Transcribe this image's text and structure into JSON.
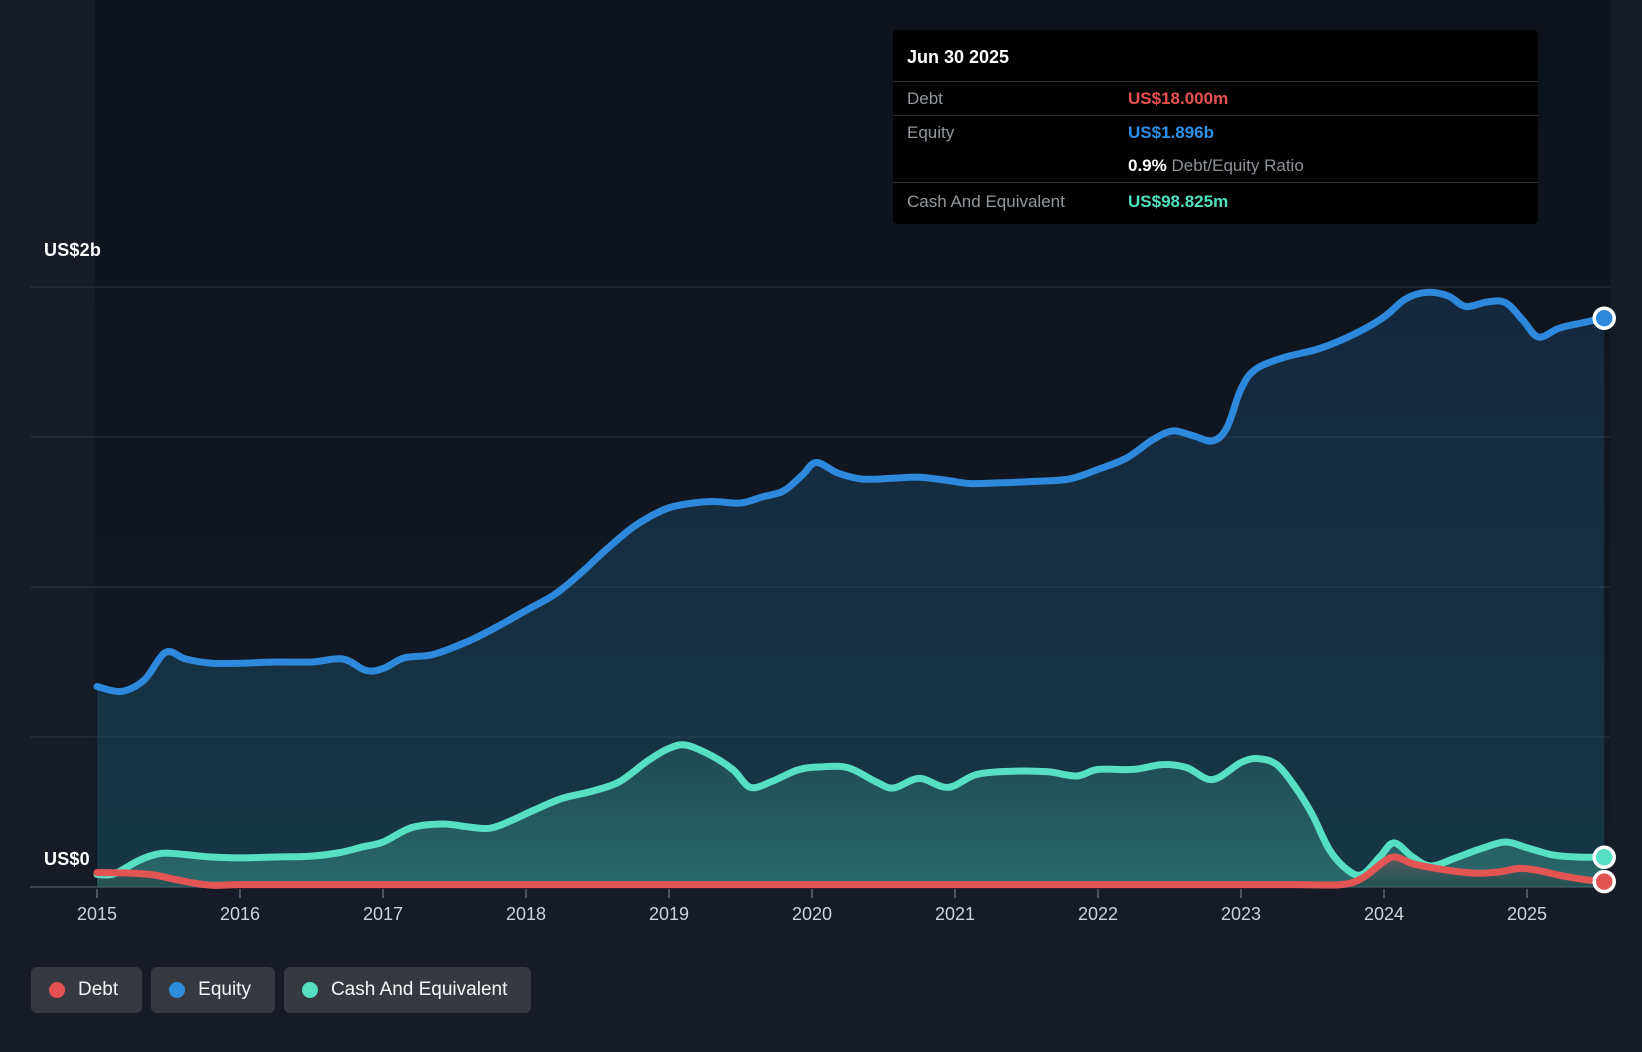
{
  "tooltip": {
    "date": "Jun 30 2025",
    "rows": [
      {
        "label": "Debt",
        "value": "US$18.000m",
        "color": "#e8514f"
      },
      {
        "label": "Equity",
        "value": "US$1.896b",
        "color": "#2f90e9"
      },
      {
        "label": "Cash And Equivalent",
        "value": "US$98.825m",
        "color": "#4fe0c2"
      }
    ],
    "ratio_value": "0.9%",
    "ratio_label": "Debt/Equity Ratio"
  },
  "y_axis": {
    "top_label": "US$2b",
    "bottom_label": "US$0"
  },
  "x_axis": {
    "years": [
      "2015",
      "2016",
      "2017",
      "2018",
      "2019",
      "2020",
      "2021",
      "2022",
      "2023",
      "2024",
      "2025"
    ]
  },
  "legend": {
    "items": [
      {
        "label": "Debt",
        "color": "#e2504f"
      },
      {
        "label": "Equity",
        "color": "#2e8ddb"
      },
      {
        "label": "Cash And Equivalent",
        "color": "#55dfc3"
      }
    ]
  },
  "colors": {
    "background": "#161b25",
    "plot_background": "#10151e",
    "gridline": "#272e3a",
    "axis_line": "#39414f",
    "tick": "#4b5463",
    "tick_label": "#ced3da",
    "equity_line": "#2e89dc",
    "cash_line": "#57dfc4",
    "debt_line": "#e25553",
    "marker_ring": "#ffffff"
  },
  "chart_data": {
    "type": "area",
    "x_unit": "year",
    "y_unit": "US$ billions",
    "xlim": [
      2015.0,
      2025.54
    ],
    "ylim": [
      0,
      2
    ],
    "gridline_values": [
      2,
      1.5,
      1,
      0.5
    ],
    "grid": true,
    "legend_position": "bottom-left",
    "series": [
      {
        "name": "Equity",
        "color": "#2e89dc",
        "points": [
          [
            2015.0,
            0.668
          ],
          [
            2015.17,
            0.652
          ],
          [
            2015.33,
            0.69
          ],
          [
            2015.48,
            0.782
          ],
          [
            2015.62,
            0.76
          ],
          [
            2015.8,
            0.746
          ],
          [
            2016.0,
            0.746
          ],
          [
            2016.25,
            0.75
          ],
          [
            2016.5,
            0.75
          ],
          [
            2016.72,
            0.76
          ],
          [
            2016.88,
            0.722
          ],
          [
            2017.0,
            0.728
          ],
          [
            2017.15,
            0.764
          ],
          [
            2017.35,
            0.775
          ],
          [
            2017.6,
            0.82
          ],
          [
            2017.8,
            0.868
          ],
          [
            2018.0,
            0.922
          ],
          [
            2018.2,
            0.975
          ],
          [
            2018.38,
            1.045
          ],
          [
            2018.55,
            1.12
          ],
          [
            2018.75,
            1.2
          ],
          [
            2018.95,
            1.255
          ],
          [
            2019.1,
            1.275
          ],
          [
            2019.3,
            1.285
          ],
          [
            2019.5,
            1.28
          ],
          [
            2019.65,
            1.3
          ],
          [
            2019.8,
            1.32
          ],
          [
            2019.93,
            1.372
          ],
          [
            2020.03,
            1.415
          ],
          [
            2020.18,
            1.38
          ],
          [
            2020.35,
            1.36
          ],
          [
            2020.55,
            1.362
          ],
          [
            2020.75,
            1.366
          ],
          [
            2020.95,
            1.355
          ],
          [
            2021.1,
            1.345
          ],
          [
            2021.3,
            1.347
          ],
          [
            2021.55,
            1.352
          ],
          [
            2021.8,
            1.36
          ],
          [
            2022.0,
            1.392
          ],
          [
            2022.2,
            1.43
          ],
          [
            2022.38,
            1.49
          ],
          [
            2022.52,
            1.52
          ],
          [
            2022.66,
            1.505
          ],
          [
            2022.8,
            1.487
          ],
          [
            2022.9,
            1.53
          ],
          [
            2023.0,
            1.66
          ],
          [
            2023.1,
            1.725
          ],
          [
            2023.3,
            1.765
          ],
          [
            2023.55,
            1.795
          ],
          [
            2023.8,
            1.845
          ],
          [
            2024.0,
            1.9
          ],
          [
            2024.15,
            1.96
          ],
          [
            2024.3,
            1.982
          ],
          [
            2024.45,
            1.97
          ],
          [
            2024.57,
            1.935
          ],
          [
            2024.72,
            1.95
          ],
          [
            2024.85,
            1.948
          ],
          [
            2024.97,
            1.89
          ],
          [
            2025.08,
            1.833
          ],
          [
            2025.22,
            1.862
          ],
          [
            2025.38,
            1.88
          ],
          [
            2025.54,
            1.896
          ]
        ],
        "end_value_label": "US$1.896b"
      },
      {
        "name": "Cash And Equivalent",
        "color": "#57dfc4",
        "points": [
          [
            2015.0,
            0.042
          ],
          [
            2015.12,
            0.044
          ],
          [
            2015.3,
            0.09
          ],
          [
            2015.45,
            0.112
          ],
          [
            2015.62,
            0.108
          ],
          [
            2015.8,
            0.1
          ],
          [
            2016.0,
            0.097
          ],
          [
            2016.25,
            0.1
          ],
          [
            2016.5,
            0.103
          ],
          [
            2016.7,
            0.115
          ],
          [
            2016.85,
            0.133
          ],
          [
            2017.0,
            0.15
          ],
          [
            2017.2,
            0.198
          ],
          [
            2017.42,
            0.21
          ],
          [
            2017.6,
            0.2
          ],
          [
            2017.75,
            0.196
          ],
          [
            2017.9,
            0.222
          ],
          [
            2018.05,
            0.255
          ],
          [
            2018.25,
            0.295
          ],
          [
            2018.45,
            0.318
          ],
          [
            2018.65,
            0.35
          ],
          [
            2018.85,
            0.42
          ],
          [
            2019.0,
            0.462
          ],
          [
            2019.12,
            0.473
          ],
          [
            2019.3,
            0.437
          ],
          [
            2019.45,
            0.39
          ],
          [
            2019.57,
            0.332
          ],
          [
            2019.72,
            0.352
          ],
          [
            2019.9,
            0.39
          ],
          [
            2020.05,
            0.4
          ],
          [
            2020.25,
            0.398
          ],
          [
            2020.45,
            0.35
          ],
          [
            2020.57,
            0.33
          ],
          [
            2020.75,
            0.362
          ],
          [
            2020.95,
            0.332
          ],
          [
            2021.15,
            0.375
          ],
          [
            2021.4,
            0.386
          ],
          [
            2021.65,
            0.384
          ],
          [
            2021.85,
            0.37
          ],
          [
            2022.0,
            0.392
          ],
          [
            2022.25,
            0.392
          ],
          [
            2022.45,
            0.408
          ],
          [
            2022.62,
            0.398
          ],
          [
            2022.8,
            0.358
          ],
          [
            2023.0,
            0.415
          ],
          [
            2023.12,
            0.428
          ],
          [
            2023.25,
            0.408
          ],
          [
            2023.38,
            0.333
          ],
          [
            2023.5,
            0.24
          ],
          [
            2023.62,
            0.123
          ],
          [
            2023.75,
            0.055
          ],
          [
            2023.85,
            0.042
          ],
          [
            2023.97,
            0.1
          ],
          [
            2024.07,
            0.147
          ],
          [
            2024.2,
            0.1
          ],
          [
            2024.33,
            0.07
          ],
          [
            2024.5,
            0.097
          ],
          [
            2024.68,
            0.128
          ],
          [
            2024.85,
            0.15
          ],
          [
            2025.0,
            0.131
          ],
          [
            2025.18,
            0.107
          ],
          [
            2025.35,
            0.1
          ],
          [
            2025.54,
            0.099
          ]
        ],
        "end_value_label": "US$98.825m"
      },
      {
        "name": "Debt",
        "color": "#e25553",
        "points": [
          [
            2015.0,
            0.048
          ],
          [
            2015.2,
            0.047
          ],
          [
            2015.4,
            0.04
          ],
          [
            2015.6,
            0.02
          ],
          [
            2015.8,
            0.006
          ],
          [
            2016.0,
            0.008
          ],
          [
            2016.5,
            0.008
          ],
          [
            2017.0,
            0.008
          ],
          [
            2017.5,
            0.008
          ],
          [
            2018.0,
            0.008
          ],
          [
            2018.5,
            0.008
          ],
          [
            2019.0,
            0.008
          ],
          [
            2019.5,
            0.008
          ],
          [
            2020.0,
            0.008
          ],
          [
            2020.5,
            0.008
          ],
          [
            2021.0,
            0.008
          ],
          [
            2021.5,
            0.008
          ],
          [
            2022.0,
            0.008
          ],
          [
            2022.5,
            0.008
          ],
          [
            2023.0,
            0.008
          ],
          [
            2023.4,
            0.008
          ],
          [
            2023.7,
            0.008
          ],
          [
            2023.85,
            0.03
          ],
          [
            2024.0,
            0.085
          ],
          [
            2024.08,
            0.1
          ],
          [
            2024.2,
            0.078
          ],
          [
            2024.35,
            0.063
          ],
          [
            2024.5,
            0.052
          ],
          [
            2024.65,
            0.046
          ],
          [
            2024.8,
            0.05
          ],
          [
            2024.95,
            0.062
          ],
          [
            2025.08,
            0.055
          ],
          [
            2025.25,
            0.037
          ],
          [
            2025.4,
            0.025
          ],
          [
            2025.54,
            0.018
          ]
        ],
        "end_value_label": "US$18.000m"
      }
    ]
  }
}
